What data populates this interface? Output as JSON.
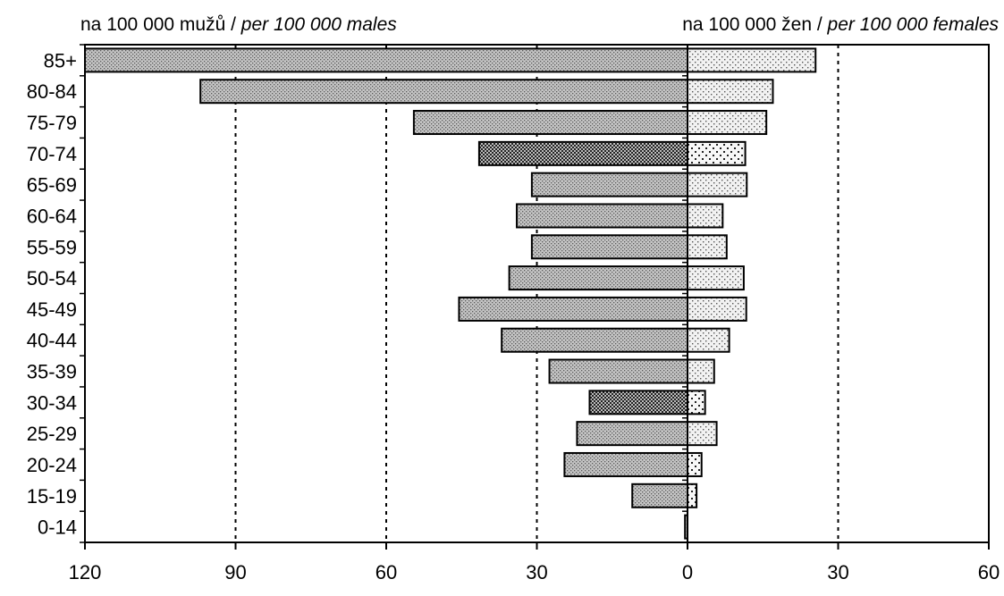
{
  "chart_data": {
    "type": "bar",
    "orientation": "horizontal",
    "layout": "population-pyramid",
    "left_header": {
      "text": "na 100 000 mužů / ",
      "italic": "per 100 000 males"
    },
    "right_header": {
      "text": "na 100 000 žen / ",
      "italic": "per 100 000 females"
    },
    "categories": [
      "85+",
      "80-84",
      "75-79",
      "70-74",
      "65-69",
      "60-64",
      "55-59",
      "50-54",
      "45-49",
      "40-44",
      "35-39",
      "30-34",
      "25-29",
      "20-24",
      "15-19",
      "0-14"
    ],
    "series": [
      {
        "name": "",
        "side": "left",
        "values": [
          120,
          97,
          54.5,
          41.5,
          31,
          34,
          31,
          35.5,
          45.5,
          37,
          27.5,
          19.5,
          22,
          24.5,
          11,
          0.5
        ]
      },
      {
        "name": "",
        "side": "right",
        "values": [
          25.5,
          17,
          15.7,
          11.5,
          11.8,
          7,
          7.8,
          11.2,
          11.7,
          8.3,
          5.3,
          3.5,
          5.8,
          2.8,
          1.8,
          0
        ]
      }
    ],
    "x_left": {
      "ticks": [
        120,
        90,
        60,
        30,
        0
      ],
      "range": [
        0,
        120
      ]
    },
    "x_right": {
      "ticks": [
        0,
        30,
        60
      ],
      "range": [
        0,
        60
      ]
    },
    "grid": {
      "style": "dotted",
      "vertical_at": [
        90,
        60,
        30,
        30
      ]
    },
    "darker_pattern_rows": [
      "70-74",
      "30-34"
    ],
    "bar_color": "#c8c8c8",
    "bar_color_right": "#ececec",
    "dark_pattern_color": "#3a3a3a"
  }
}
